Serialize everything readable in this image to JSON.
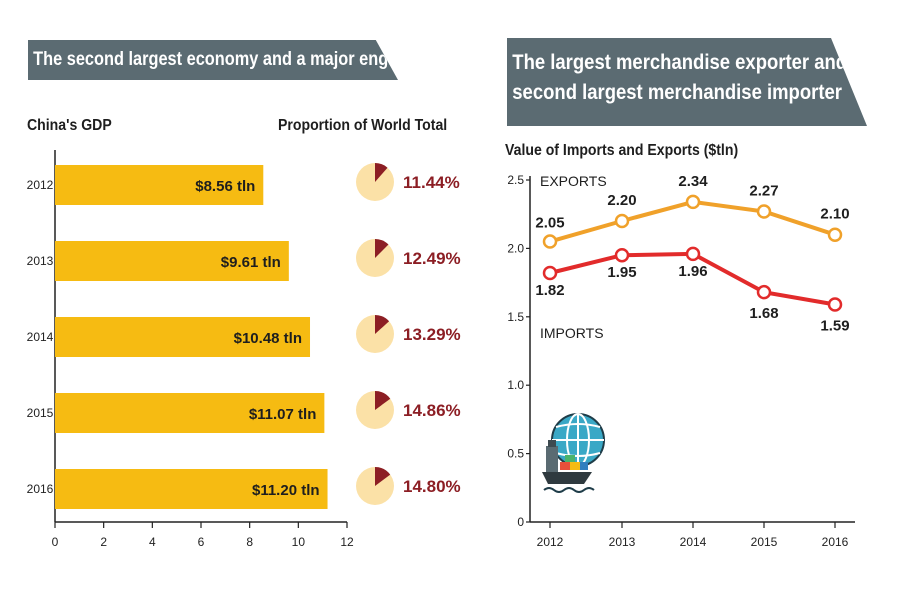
{
  "banners": {
    "left": "The second largest economy and a major engine",
    "right_line1": "The largest merchandise exporter and",
    "right_line2": "second largest merchandise importer"
  },
  "colors": {
    "banner": "#5b6b72",
    "bar": "#f6bb12",
    "pie_bg": "#fbe1a7",
    "pie_slice": "#8c1e24",
    "pct_text": "#8c1e24",
    "exports": "#f0a12a",
    "imports": "#e22b2b"
  },
  "chart_data": [
    {
      "type": "bar",
      "orientation": "horizontal",
      "title": "China's GDP",
      "categories": [
        "2012",
        "2013",
        "2014",
        "2015",
        "2016"
      ],
      "values": [
        8.56,
        9.61,
        10.48,
        11.07,
        11.2
      ],
      "data_labels": [
        "$8.56 tln",
        "$9.61 tln",
        "$10.48 tln",
        "$11.07 tln",
        "$11.20 tln"
      ],
      "xlim": [
        0,
        12
      ],
      "xticks": [
        "0",
        "2",
        "4",
        "6",
        "8",
        "10",
        "12"
      ],
      "grid": false
    },
    {
      "type": "pie",
      "title": "Proportion of World Total",
      "categories": [
        "2012",
        "2013",
        "2014",
        "2015",
        "2016"
      ],
      "values": [
        11.44,
        12.49,
        13.29,
        14.86,
        14.8
      ],
      "data_labels": [
        "11.44%",
        "12.49%",
        "13.29%",
        "14.86%",
        "14.80%"
      ]
    },
    {
      "type": "line",
      "title": "Value of Imports and Exports ($tln)",
      "x": [
        "2012",
        "2013",
        "2014",
        "2015",
        "2016"
      ],
      "ylim": [
        0,
        2.5
      ],
      "yticks": [
        "0",
        "0.5",
        "1.0",
        "1.5",
        "2.0",
        "2.5"
      ],
      "series": [
        {
          "name": "EXPORTS",
          "values": [
            2.05,
            2.2,
            2.34,
            2.27,
            2.1
          ],
          "labels": [
            "2.05",
            "2.20",
            "2.34",
            "2.27",
            "2.10"
          ]
        },
        {
          "name": "IMPORTS",
          "values": [
            1.82,
            1.95,
            1.96,
            1.68,
            1.59
          ],
          "labels": [
            "1.82",
            "1.95",
            "1.96",
            "1.68",
            "1.59"
          ]
        }
      ],
      "grid": false
    }
  ],
  "icons": [
    "globe-icon",
    "cargo-ship-icon"
  ]
}
